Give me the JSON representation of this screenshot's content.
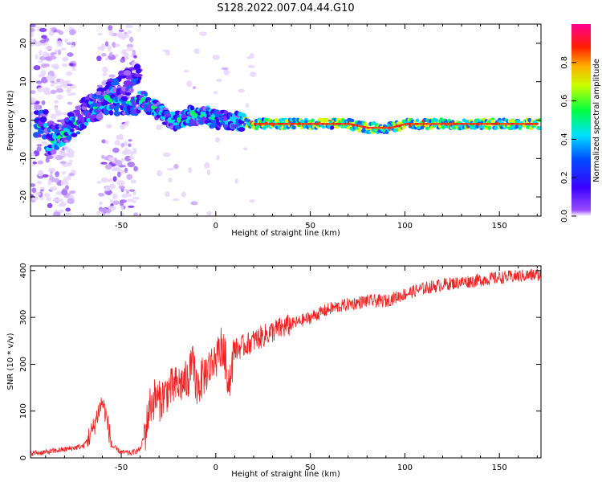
{
  "title": "S128.2022.007.04.44.G10",
  "chart_data": [
    {
      "type": "heatmap",
      "xlabel": "Height of straight line (km)",
      "ylabel": "Frequency (Hz)",
      "xlim": [
        -98,
        172
      ],
      "ylim": [
        -25,
        25
      ],
      "xticks": [
        -50,
        0,
        50,
        100,
        150
      ],
      "yticks": [
        -20,
        -10,
        0,
        10,
        20
      ],
      "colorbar": {
        "label": "Normalized spectral amplitude",
        "range": [
          0,
          1
        ],
        "ticks": [
          "0.0",
          "0.2",
          "0.4",
          "0.6",
          "0.8"
        ],
        "colors": [
          "#ffffff",
          "#8000ff",
          "#0000ff",
          "#00ffff",
          "#00ff00",
          "#ffff00",
          "#ff0000",
          "#ff00a0"
        ]
      },
      "ridge": [
        {
          "x": -90,
          "y": -6
        },
        {
          "x": -80,
          "y": -3
        },
        {
          "x": -72,
          "y": 0
        },
        {
          "x": -65,
          "y": 3
        },
        {
          "x": -58,
          "y": 5
        },
        {
          "x": -50,
          "y": 5
        },
        {
          "x": -42,
          "y": 5
        },
        {
          "x": -38,
          "y": 5
        },
        {
          "x": -35,
          "y": 4
        },
        {
          "x": -30,
          "y": 2
        },
        {
          "x": -26,
          "y": 1
        },
        {
          "x": -22,
          "y": 0
        },
        {
          "x": -18,
          "y": 0
        },
        {
          "x": -14,
          "y": 1
        },
        {
          "x": -10,
          "y": 1
        },
        {
          "x": -5,
          "y": 1
        },
        {
          "x": 0,
          "y": 0
        },
        {
          "x": 5,
          "y": 0
        },
        {
          "x": 10,
          "y": 0
        },
        {
          "x": 20,
          "y": -1
        },
        {
          "x": 40,
          "y": -1
        },
        {
          "x": 60,
          "y": -1
        },
        {
          "x": 70,
          "y": -1
        },
        {
          "x": 80,
          "y": -2
        },
        {
          "x": 92,
          "y": -2
        },
        {
          "x": 100,
          "y": -1
        },
        {
          "x": 130,
          "y": -1
        },
        {
          "x": 150,
          "y": -1
        },
        {
          "x": 172,
          "y": -1
        }
      ]
    },
    {
      "type": "line",
      "xlabel": "Height of straight line (km)",
      "ylabel": "SNR (10 * v/v)",
      "xlim": [
        -98,
        172
      ],
      "ylim": [
        0,
        410
      ],
      "xticks": [
        -50,
        0,
        50,
        100,
        150
      ],
      "yticks": [
        0,
        100,
        200,
        300,
        400
      ],
      "series": [
        {
          "color": "#ee2222",
          "x": [
            -98,
            -90,
            -80,
            -70,
            -65,
            -62,
            -60,
            -58,
            -55,
            -50,
            -45,
            -40,
            -37,
            -35,
            -32,
            -30,
            -25,
            -20,
            -15,
            -12,
            -10,
            -5,
            0,
            3,
            5,
            7,
            10,
            15,
            20,
            30,
            40,
            50,
            60,
            70,
            80,
            90,
            100,
            110,
            120,
            130,
            140,
            150,
            160,
            172
          ],
          "y": [
            10,
            12,
            18,
            25,
            60,
            100,
            120,
            90,
            25,
            12,
            10,
            18,
            60,
            110,
            130,
            120,
            145,
            155,
            165,
            200,
            150,
            185,
            210,
            240,
            210,
            160,
            230,
            240,
            250,
            270,
            285,
            300,
            318,
            328,
            335,
            335,
            350,
            362,
            370,
            375,
            380,
            385,
            388,
            392
          ]
        }
      ]
    }
  ]
}
